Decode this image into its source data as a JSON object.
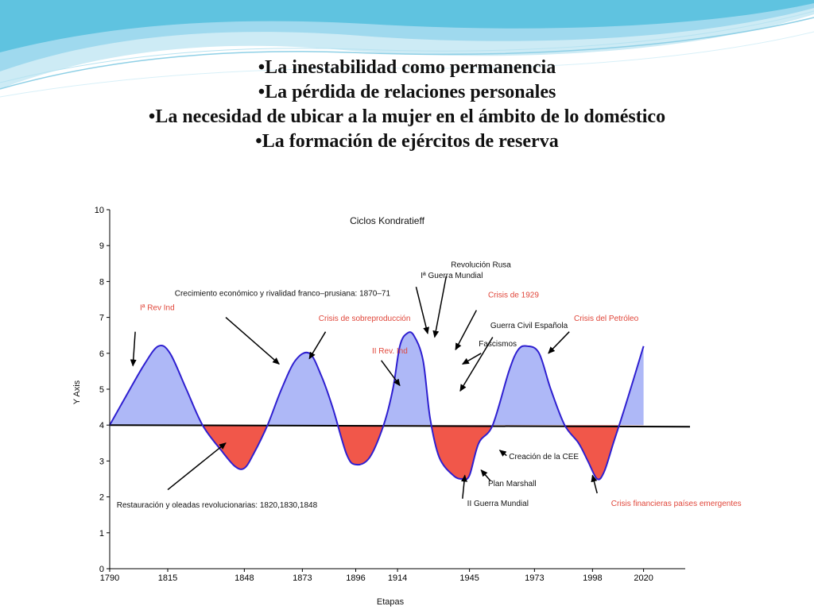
{
  "slide": {
    "bullets": [
      "•La inestabilidad como permanencia",
      "•La pérdida de relaciones personales",
      "•La necesidad de ubicar a la mujer en el ámbito de lo doméstico",
      "•La formación de ejércitos de reserva"
    ]
  },
  "colors": {
    "header_wave_light": "#bfe6f3",
    "header_wave_dark": "#5fc3e0",
    "curve_line": "#2e1fd0",
    "fill_above": "#aeb8f7",
    "fill_below": "#f1574a",
    "baseline": "#000000",
    "label_black": "#111111",
    "label_red": "#e0463a"
  },
  "chart_data": {
    "type": "area",
    "title": "Ciclos Kondratieff",
    "xlabel": "Etapas",
    "ylabel": "Y Axis",
    "ylim": [
      0,
      10
    ],
    "yticks": [
      0,
      1,
      2,
      3,
      4,
      5,
      6,
      7,
      8,
      9,
      10
    ],
    "xticks": [
      "1790",
      "1815",
      "1848",
      "1873",
      "1896",
      "1914",
      "1945",
      "1973",
      "1998",
      "2020"
    ],
    "xtick_values": [
      1790,
      1815,
      1848,
      1873,
      1896,
      1914,
      1945,
      1973,
      1998,
      2020
    ],
    "xlim": [
      1790,
      2040
    ],
    "baseline": 4.0,
    "grid": false,
    "x": [
      1790,
      1797,
      1805,
      1811,
      1816,
      1823,
      1830,
      1838,
      1844,
      1848,
      1852,
      1858,
      1864,
      1870,
      1876,
      1881,
      1886,
      1892,
      1896,
      1902,
      1908,
      1912,
      1915,
      1918,
      1921,
      1925,
      1928,
      1932,
      1938,
      1942,
      1945,
      1949,
      1955,
      1962,
      1966,
      1970,
      1975,
      1980,
      1986,
      1992,
      1996,
      2000,
      2003,
      2007,
      2012,
      2020
    ],
    "y": [
      4.0,
      4.8,
      5.7,
      6.2,
      6.0,
      5.0,
      4.0,
      3.3,
      2.85,
      2.8,
      3.2,
      4.0,
      5.0,
      5.8,
      6.0,
      5.4,
      4.5,
      3.2,
      2.9,
      3.1,
      4.0,
      5.0,
      6.2,
      6.55,
      6.5,
      5.8,
      4.2,
      3.1,
      2.6,
      2.5,
      2.6,
      3.5,
      4.0,
      5.5,
      6.1,
      6.2,
      6.0,
      5.0,
      4.0,
      3.5,
      3.0,
      2.5,
      2.7,
      3.5,
      4.5,
      6.2
    ],
    "annotations": [
      {
        "text": "Iª Rev Ind",
        "color": "red",
        "x": 1803,
        "y": 7.2,
        "arrow_from": [
          1801,
          6.6
        ],
        "arrow_to": [
          1800,
          5.65
        ]
      },
      {
        "text": "Crecimiento económico y rivalidad franco–prusiana: 1870–71",
        "color": "black",
        "x": 1818,
        "y": 7.6,
        "arrow_from": [
          1840,
          7.0
        ],
        "arrow_to": [
          1863,
          5.7
        ]
      },
      {
        "text": "Crisis de sobreproducción",
        "color": "red",
        "x": 1880,
        "y": 6.9,
        "arrow_from": [
          1883,
          6.6
        ],
        "arrow_to": [
          1876,
          5.85
        ]
      },
      {
        "text": "II Rev. Ind",
        "color": "red",
        "x": 1903,
        "y": 6.0,
        "arrow_from": [
          1907,
          5.8
        ],
        "arrow_to": [
          1915,
          5.1
        ]
      },
      {
        "text": "Revolución Rusa",
        "color": "black",
        "x": 1937,
        "y": 8.4,
        "arrow_from": [
          1935,
          8.15
        ],
        "arrow_to": [
          1930,
          6.45
        ]
      },
      {
        "text": "Iª Guerra Mundial",
        "color": "black",
        "x": 1924,
        "y": 8.1,
        "arrow_from": [
          1922,
          7.85
        ],
        "arrow_to": [
          1927,
          6.55
        ]
      },
      {
        "text": "Crisis de 1929",
        "color": "red",
        "x": 1953,
        "y": 7.55,
        "arrow_from": [
          1948,
          7.2
        ],
        "arrow_to": [
          1939,
          6.1
        ]
      },
      {
        "text": "Guerra Civil Española",
        "color": "black",
        "x": 1954,
        "y": 6.7,
        "arrow_from": [
          1955,
          6.45
        ],
        "arrow_to": [
          1941,
          4.95
        ]
      },
      {
        "text": "Fascismos",
        "color": "black",
        "x": 1949,
        "y": 6.2,
        "arrow_from": [
          1950,
          6.0
        ],
        "arrow_to": [
          1942,
          5.7
        ]
      },
      {
        "text": "Crisis del Petróleo",
        "color": "red",
        "x": 1990,
        "y": 6.9,
        "arrow_from": [
          1988,
          6.6
        ],
        "arrow_to": [
          1979,
          6.0
        ]
      },
      {
        "text": "Restauración y oleadas revolucionarias: 1820,1830,1848",
        "color": "black",
        "x": 1793,
        "y": 1.7,
        "arrow_from": [
          1815,
          2.2
        ],
        "arrow_to": [
          1840,
          3.5
        ]
      },
      {
        "text": "Creación de la CEE",
        "color": "black",
        "x": 1962,
        "y": 3.05,
        "arrow_from": [
          1961,
          3.15
        ],
        "arrow_to": [
          1958,
          3.3
        ]
      },
      {
        "text": "Plan Marshall",
        "color": "black",
        "x": 1953,
        "y": 2.3,
        "arrow_from": [
          1954,
          2.45
        ],
        "arrow_to": [
          1950,
          2.75
        ]
      },
      {
        "text": "II Guerra Mundial",
        "color": "black",
        "x": 1944,
        "y": 1.75,
        "arrow_from": [
          1942,
          1.95
        ],
        "arrow_to": [
          1943,
          2.6
        ]
      },
      {
        "text": "Crisis financieras países emergentes",
        "color": "red",
        "x": 2006,
        "y": 1.75,
        "arrow_from": [
          2000,
          2.1
        ],
        "arrow_to": [
          1998,
          2.6
        ]
      }
    ]
  }
}
